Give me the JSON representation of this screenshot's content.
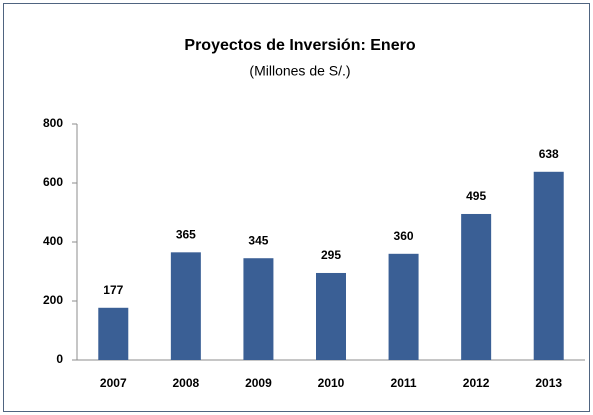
{
  "chart_data": {
    "type": "bar",
    "title": "Proyectos de Inversión: Enero",
    "subtitle": "(Millones de S/.)",
    "categories": [
      "2007",
      "2008",
      "2009",
      "2010",
      "2011",
      "2012",
      "2013"
    ],
    "values": [
      177,
      365,
      345,
      295,
      360,
      495,
      638
    ],
    "color": "#3a5f95",
    "ylim": [
      0,
      800
    ],
    "yticks": [
      0,
      200,
      400,
      600,
      800
    ],
    "grid": false
  }
}
